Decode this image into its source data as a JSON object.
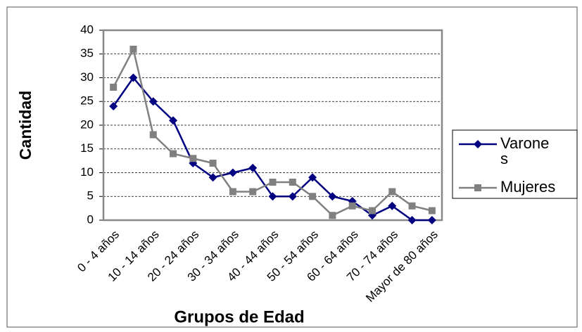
{
  "chart_data": {
    "type": "line",
    "x_label": "Grupos de Edad",
    "y_label": "Cantidad",
    "categories": [
      "0 - 4 años",
      null,
      "10 - 14 años",
      null,
      "20 - 24 años",
      null,
      "30 - 34 años",
      null,
      "40 - 44 años",
      null,
      "50 - 54 años",
      null,
      "60 - 64 años",
      null,
      "70 - 74 años",
      null,
      "Mayor de 80 años"
    ],
    "series": [
      {
        "name": "Varones",
        "color": "#000080",
        "marker": "diamond",
        "values": [
          24,
          30,
          25,
          21,
          12,
          9,
          10,
          11,
          5,
          5,
          9,
          5,
          4,
          1,
          3,
          0,
          0
        ]
      },
      {
        "name": "Mujeres",
        "color": "#808080",
        "marker": "square",
        "values": [
          28,
          36,
          18,
          14,
          13,
          12,
          6,
          6,
          8,
          8,
          5,
          1,
          3,
          2,
          6,
          3,
          2
        ]
      }
    ],
    "ylim": [
      0,
      40
    ],
    "yticks": [
      0,
      5,
      10,
      15,
      20,
      25,
      30,
      35,
      40
    ],
    "grid": true,
    "legend": "right"
  }
}
